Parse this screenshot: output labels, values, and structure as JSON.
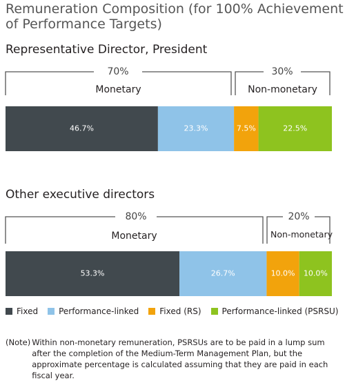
{
  "title": "Remuneration Composition (for 100% Achievement of Performance Targets)",
  "colors": {
    "fixed": "#41494e",
    "performance_linked": "#8fc3e8",
    "fixed_rs": "#f2a30c",
    "performance_linked_psrsu": "#8ec31f"
  },
  "sections": [
    {
      "title": "Representative Director, President",
      "monetary_pct": "70%",
      "monetary_label": "Monetary",
      "nonmonetary_pct": "30%",
      "nonmonetary_label": "Non-monetary"
    },
    {
      "title": "Other executive directors",
      "monetary_pct": "80%",
      "monetary_label": "Monetary",
      "nonmonetary_pct": "20%",
      "nonmonetary_label": "Non-monetary"
    }
  ],
  "legend": [
    {
      "label": "Fixed",
      "color": "#41494e"
    },
    {
      "label": "Performance-linked",
      "color": "#8fc3e8"
    },
    {
      "label": "Fixed (RS)",
      "color": "#f2a30c"
    },
    {
      "label": "Performance-linked (PSRSU)",
      "color": "#8ec31f"
    }
  ],
  "note": {
    "tag": "(Note)",
    "text": "Within non-monetary remuneration, PSRSUs are to be paid in a lump sum after the completion of the Medium-Term Management Plan, but the approximate percentage is calculated assuming that they are paid in each fiscal year."
  },
  "chart_data": [
    {
      "type": "bar",
      "orientation": "horizontal-stacked",
      "title": "Representative Director, President",
      "series": [
        {
          "name": "Fixed",
          "values": [
            46.7
          ],
          "label": "46.7%"
        },
        {
          "name": "Performance-linked",
          "values": [
            23.3
          ],
          "label": "23.3%"
        },
        {
          "name": "Fixed (RS)",
          "values": [
            7.5
          ],
          "label": "7.5%"
        },
        {
          "name": "Performance-linked (PSRSU)",
          "values": [
            22.5
          ],
          "label": "22.5%"
        }
      ]
    },
    {
      "type": "bar",
      "orientation": "horizontal-stacked",
      "title": "Other executive directors",
      "series": [
        {
          "name": "Fixed",
          "values": [
            53.3
          ],
          "label": "53.3%"
        },
        {
          "name": "Performance-linked",
          "values": [
            26.7
          ],
          "label": "26.7%"
        },
        {
          "name": "Fixed (RS)",
          "values": [
            10.0
          ],
          "label": "10.0%"
        },
        {
          "name": "Performance-linked (PSRSU)",
          "values": [
            10.0
          ],
          "label": "10.0%"
        }
      ]
    }
  ]
}
